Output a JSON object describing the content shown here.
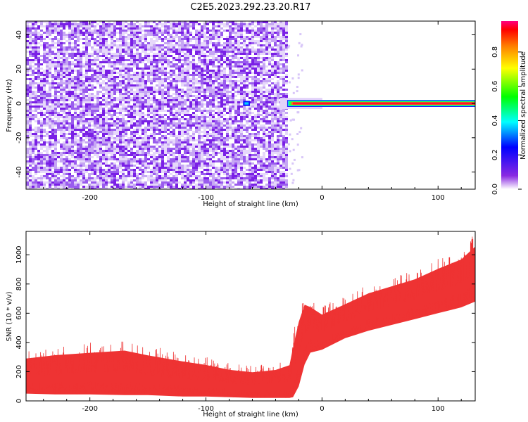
{
  "title": "C2E5.2023.292.23.20.R17",
  "chart_data": [
    {
      "type": "heatmap",
      "xlabel": "Height of straight line (km)",
      "ylabel": "Frequency (Hz)",
      "xlim": [
        -255,
        132
      ],
      "ylim": [
        -50,
        48
      ],
      "xticks": [
        -200,
        -100,
        0,
        100
      ],
      "yticks": [
        -40,
        -20,
        0,
        20,
        40
      ],
      "grid": false,
      "noise_region_x": [
        -255,
        -30
      ],
      "features": [
        {
          "label": "spot",
          "x": [
            -68,
            -62
          ],
          "y": [
            -1.5,
            1.5
          ],
          "amplitude": 0.15
        },
        {
          "label": "signal-line",
          "x": [
            -30,
            132
          ],
          "y": [
            -1.2,
            1.2
          ],
          "amplitude": 0.85
        }
      ]
    },
    {
      "type": "area",
      "xlabel": "Height of straight line (km)",
      "ylabel": "SNR (10 * v/v)",
      "xlim": [
        -255,
        132
      ],
      "ylim": [
        0,
        1160
      ],
      "xticks": [
        -200,
        -100,
        0,
        100
      ],
      "yticks": [
        0,
        200,
        400,
        600,
        800,
        1000
      ],
      "grid": false,
      "series": [
        {
          "x": [
            -255,
            -230,
            -200,
            -170,
            -150,
            -120,
            -100,
            -80,
            -60,
            -40,
            -28,
            -25,
            -20,
            -15,
            -10,
            0,
            20,
            40,
            60,
            80,
            100,
            120,
            132
          ],
          "low": [
            50,
            45,
            45,
            40,
            40,
            30,
            30,
            25,
            20,
            20,
            20,
            25,
            100,
            250,
            330,
            350,
            430,
            480,
            520,
            560,
            600,
            640,
            680
          ],
          "high": [
            350,
            380,
            400,
            420,
            380,
            330,
            300,
            260,
            240,
            260,
            300,
            450,
            650,
            760,
            720,
            650,
            720,
            800,
            850,
            900,
            980,
            1050,
            1150
          ]
        }
      ]
    }
  ],
  "colorbar": {
    "label": "Normalized spectral amplitude",
    "range": [
      0,
      0.98
    ],
    "ticks": [
      0.0,
      0.2,
      0.4,
      0.6,
      0.8
    ]
  }
}
